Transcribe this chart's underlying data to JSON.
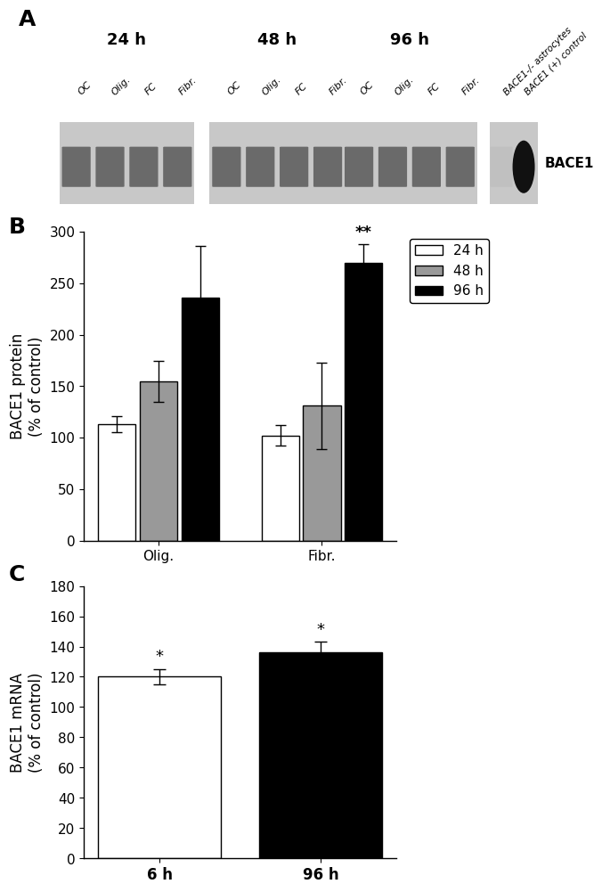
{
  "panel_A": {
    "label": "A",
    "time_labels": [
      "24 h",
      "48 h",
      "96 h"
    ],
    "lane_labels": [
      "OC",
      "Olig.",
      "FC",
      "Fibr."
    ],
    "control_labels": [
      "BACE1-/- astrocytes",
      "BACE1 (+) control"
    ],
    "bace1_label": "BACE1"
  },
  "panel_B": {
    "label": "B",
    "categories": [
      "Olig.",
      "Fibr."
    ],
    "bars": {
      "24h": [
        113,
        102
      ],
      "48h": [
        155,
        131
      ],
      "96h": [
        236,
        270
      ]
    },
    "errors": {
      "24h": [
        8,
        10
      ],
      "48h": [
        20,
        42
      ],
      "96h": [
        50,
        18
      ]
    },
    "colors": {
      "24h": "#ffffff",
      "48h": "#999999",
      "96h": "#000000"
    },
    "legend_labels": [
      "24 h",
      "48 h",
      "96 h"
    ],
    "ylabel": "BACE1 protein\n(% of control)",
    "ylim": [
      0,
      300
    ],
    "yticks": [
      0,
      50,
      100,
      150,
      200,
      250,
      300
    ],
    "significance_idx": 1,
    "significance_text": "**"
  },
  "panel_C": {
    "label": "C",
    "categories": [
      "6 h",
      "96 h"
    ],
    "values": [
      120,
      136
    ],
    "errors": [
      5,
      7
    ],
    "colors": [
      "#ffffff",
      "#000000"
    ],
    "ylabel": "BACE1 mRNA\n(% of control)",
    "ylim": [
      0,
      180
    ],
    "yticks": [
      0,
      20,
      40,
      60,
      80,
      100,
      120,
      140,
      160,
      180
    ],
    "significance": [
      "*",
      "*"
    ]
  },
  "figure_bg": "#ffffff",
  "label_fontsize": 18,
  "tick_fontsize": 11,
  "axis_label_fontsize": 12
}
